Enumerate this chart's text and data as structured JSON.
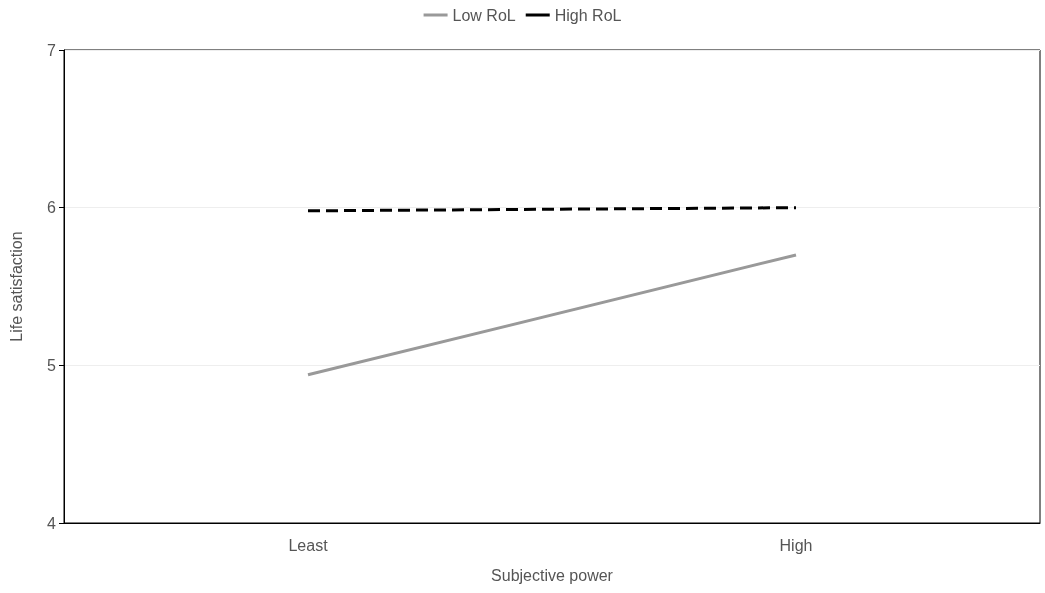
{
  "chart_data": {
    "type": "line",
    "xlabel": "Subjective power",
    "ylabel": "Life satisfaction",
    "categories": [
      "Least",
      "High"
    ],
    "series": [
      {
        "name": "Low RoL",
        "color": "#999999",
        "line_style": "solid",
        "values": [
          4.94,
          5.7
        ]
      },
      {
        "name": "High RoL",
        "color": "#000000",
        "line_style": "dashed",
        "values": [
          5.98,
          6.0
        ]
      }
    ],
    "ylim": [
      4,
      7
    ],
    "yticks": [
      4,
      5,
      6,
      7
    ],
    "grid": "y",
    "legend": "top",
    "marker": "none"
  }
}
